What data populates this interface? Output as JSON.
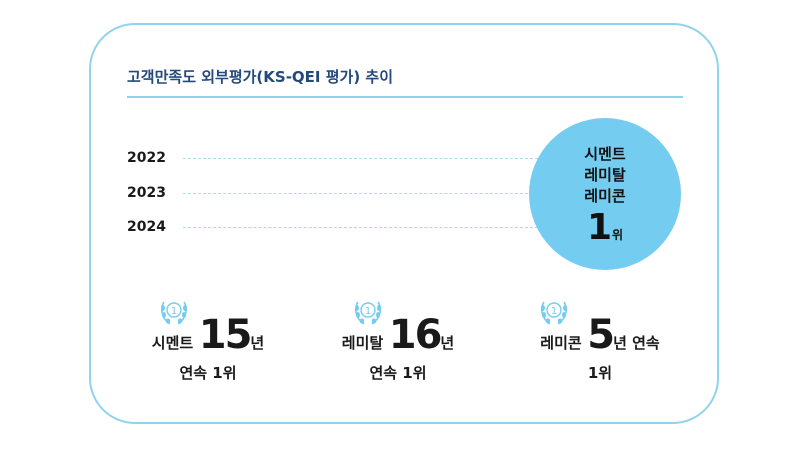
{
  "title": "고객만족도 외부평가(KS-QEI 평가) 추이",
  "colors": {
    "accent": "#74ccf0",
    "border": "#8fd3ec",
    "title": "#244a7c"
  },
  "years": [
    "2022",
    "2023",
    "2024"
  ],
  "highlight": {
    "lines": [
      "시멘트",
      "레미탈",
      "레미콘"
    ],
    "rank_number": "1",
    "rank_unit": "위"
  },
  "awards": [
    {
      "name": "시멘트",
      "count": "15",
      "unit": "년",
      "suffix": "",
      "sub": "연속 1위",
      "icon": "laurel-icon"
    },
    {
      "name": "레미탈",
      "count": "16",
      "unit": "년",
      "suffix": "",
      "sub": "연속 1위",
      "icon": "laurel-icon"
    },
    {
      "name": "레미콘",
      "count": "5",
      "unit": "년",
      "suffix": " 연속",
      "sub": "1위",
      "icon": "laurel-icon"
    }
  ],
  "laurel_badge": "1"
}
